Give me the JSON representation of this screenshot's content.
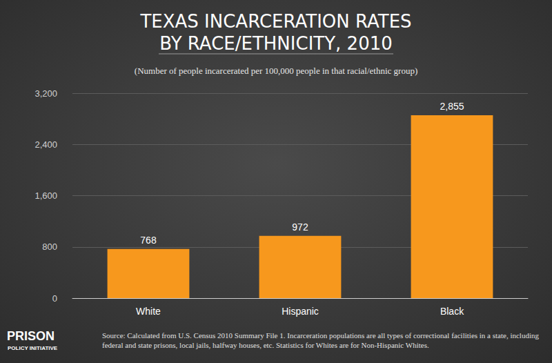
{
  "chart_data": {
    "type": "bar",
    "title": "TEXAS INCARCERATION RATES\nBY RACE/ETHNICITY, 2010",
    "subtitle": "(Number of people incarcerated per 100,000 people in that racial/ethnic group)",
    "categories": [
      "White",
      "Hispanic",
      "Black"
    ],
    "values": [
      768,
      972,
      2855
    ],
    "value_labels": [
      "768",
      "972",
      "2,855"
    ],
    "color": "#f7981d",
    "ylim": [
      0,
      3200
    ],
    "yticks": [
      0,
      800,
      {
        "value": 1600,
        "label": "1,600"
      },
      {
        "value": 2400,
        "label": "2,400"
      },
      {
        "value": 3200,
        "label": "3,200"
      }
    ],
    "grid": true,
    "data_labels": true,
    "source": "Source: Calculated from U.S. Census 2010 Summary File 1. Incarceration populations are all types of correctional facilities in a state, including federal and state prisons, local jails, halfway houses, etc. Statistics for Whites are for Non-Hispanic Whites.",
    "logo": [
      "PRISON",
      "POLICY INITIATIVE"
    ]
  }
}
